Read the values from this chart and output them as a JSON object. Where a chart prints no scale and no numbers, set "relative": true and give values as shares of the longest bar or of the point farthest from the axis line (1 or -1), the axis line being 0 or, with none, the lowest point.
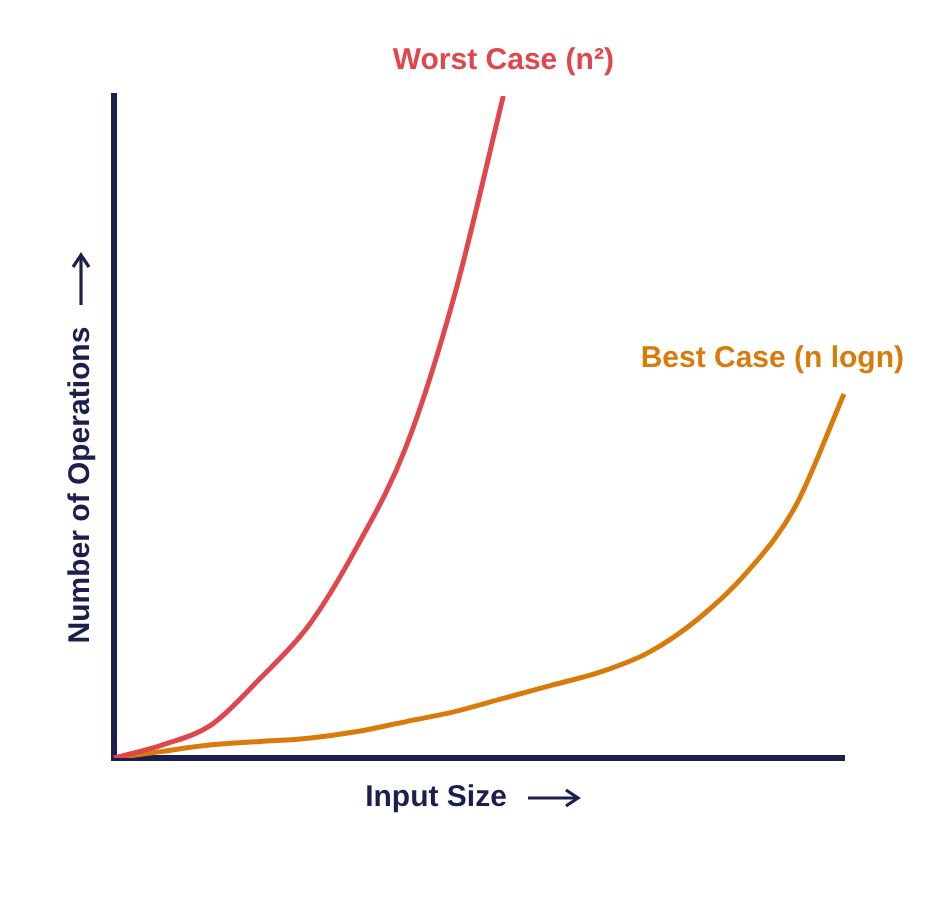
{
  "chart_data": {
    "type": "line",
    "xlabel": "Input Size",
    "ylabel": "Number of Operations",
    "relative": true,
    "legend": false,
    "grid": false,
    "marker": "none",
    "categories": [
      null,
      null,
      null,
      null,
      null,
      null,
      null,
      null,
      null,
      null,
      null,
      null,
      null,
      null,
      null,
      null
    ],
    "series": [
      {
        "name": "Worst Case (n²)",
        "color": "#e0474c",
        "values": [
          0,
          0.02,
          0.05,
          0.12,
          0.2,
          0.32,
          0.47,
          0.7,
          1,
          null,
          null,
          null,
          null,
          null,
          null,
          null
        ]
      },
      {
        "name": "Best Case (n logn)",
        "color": "#d97b0a",
        "values": [
          0,
          0.01,
          0.02,
          0.025,
          0.03,
          0.04,
          0.055,
          0.07,
          0.09,
          0.11,
          0.13,
          0.16,
          0.21,
          0.28,
          0.38,
          0.55
        ]
      }
    ]
  }
}
